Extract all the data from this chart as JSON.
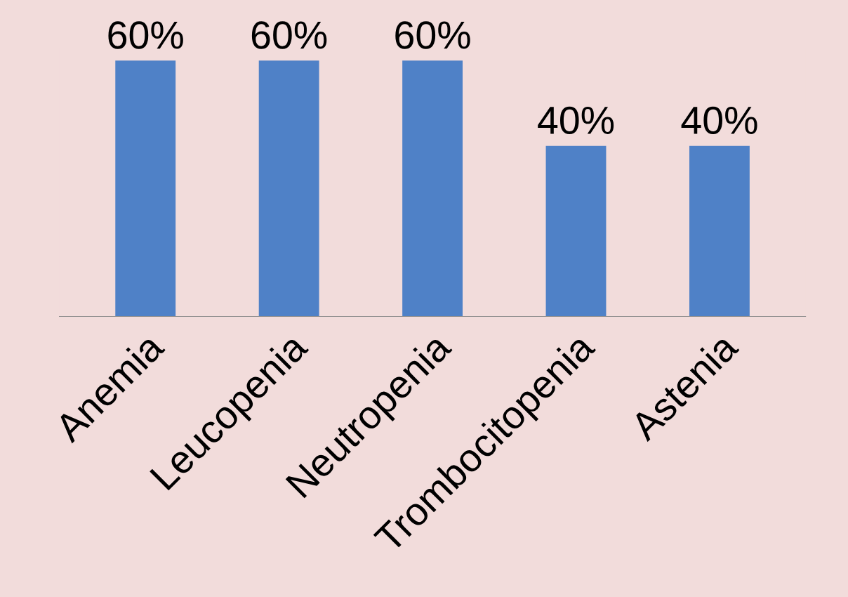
{
  "chart_data": {
    "type": "bar",
    "categories": [
      "Anemia",
      "Leucopenia",
      "Neutropenia",
      "Trombocitopenia",
      "Astenia"
    ],
    "values": [
      60,
      60,
      60,
      40,
      40
    ],
    "value_labels": [
      "60%",
      "60%",
      "60%",
      "40%",
      "40%"
    ],
    "color": "#4f81c7",
    "grid": false,
    "legend": false,
    "tick_labels": "x"
  }
}
